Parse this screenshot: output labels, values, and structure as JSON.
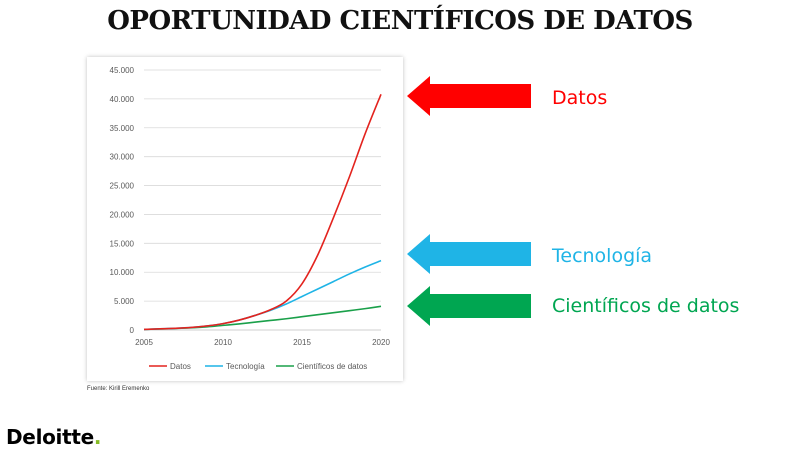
{
  "title": "OPORTUNIDAD CIENTÍFICOS DE DATOS",
  "source": "Fuente: Kirill Eremenko",
  "brand": {
    "name": "Deloitte",
    "dot": ".",
    "dot_color": "#86bc25"
  },
  "callouts": [
    {
      "label": "Datos",
      "color": "#ff0000",
      "arrow_icon": "left-arrow-icon"
    },
    {
      "label": "Tecnología",
      "color": "#1fb4e6",
      "arrow_icon": "left-arrow-icon"
    },
    {
      "label": "Científicos de datos",
      "color": "#00a651",
      "arrow_icon": "left-arrow-icon"
    }
  ],
  "chart_data": {
    "type": "line",
    "x": [
      2005,
      2006,
      2007,
      2008,
      2009,
      2010,
      2011,
      2012,
      2013,
      2014,
      2015,
      2016,
      2017,
      2018,
      2019,
      2020
    ],
    "xticks": [
      "2005",
      "2010",
      "2015",
      "2020"
    ],
    "xlim": [
      2005,
      2020
    ],
    "ylim": [
      0,
      45000
    ],
    "yticks": [
      "0",
      "5.000",
      "10.000",
      "15.000",
      "20.000",
      "25.000",
      "30.000",
      "35.000",
      "40.000",
      "45.000"
    ],
    "grid": true,
    "legend_position": "bottom",
    "series": [
      {
        "name": "Datos",
        "color": "#e3231e",
        "values": [
          100,
          200,
          300,
          450,
          700,
          1100,
          1700,
          2500,
          3500,
          5000,
          8000,
          13000,
          19500,
          26500,
          34000,
          40800
        ]
      },
      {
        "name": "Tecnología",
        "color": "#1fb4e6",
        "values": [
          100,
          200,
          300,
          450,
          700,
          1100,
          1700,
          2500,
          3400,
          4500,
          5800,
          7100,
          8400,
          9700,
          10900,
          12000
        ]
      },
      {
        "name": "Científicos de datos",
        "color": "#1aa04a",
        "values": [
          100,
          180,
          260,
          380,
          550,
          800,
          1050,
          1350,
          1650,
          1950,
          2300,
          2650,
          3000,
          3350,
          3700,
          4100
        ]
      }
    ]
  }
}
